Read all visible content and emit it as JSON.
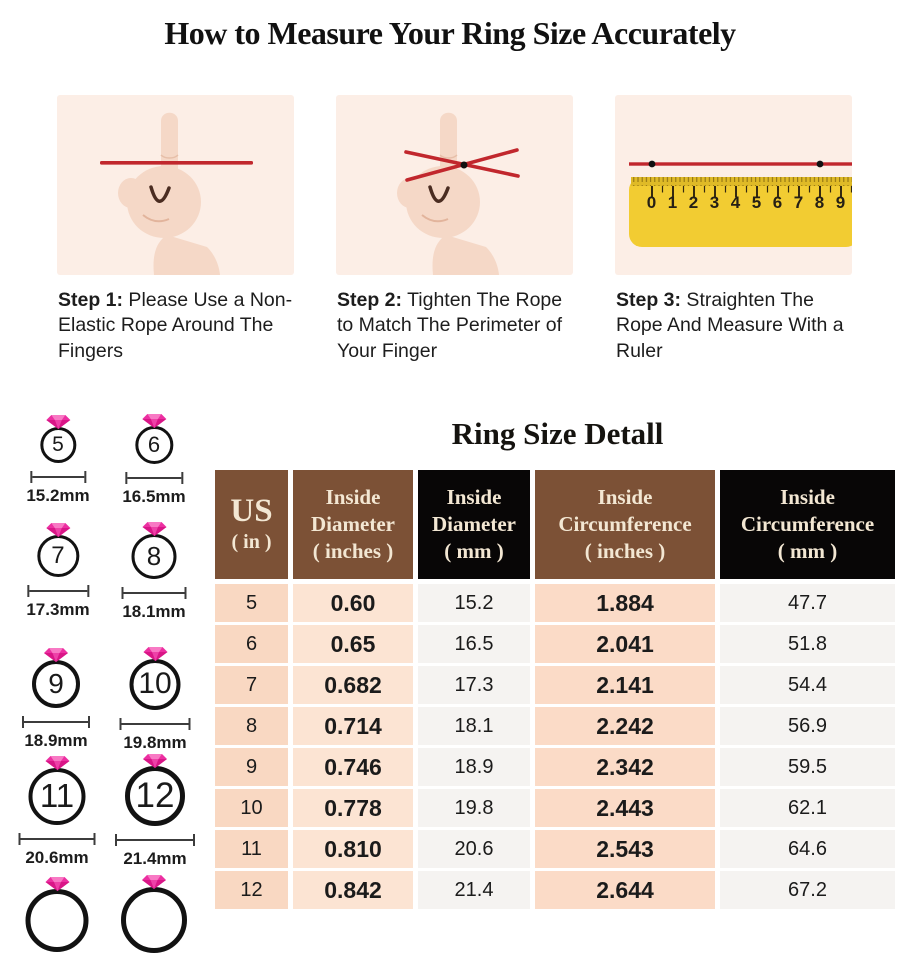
{
  "page_title": "How to Measure Your Ring Size Accurately",
  "steps": [
    {
      "label": "Step 1:",
      "text": " Please Use a Non-Elastic Rope Around The Fingers",
      "illustration": "hand-with-straight-rope"
    },
    {
      "label": "Step 2:",
      "text": " Tighten The Rope to Match The Perimeter of Your Finger",
      "illustration": "hand-with-crossed-rope"
    },
    {
      "label": "Step 3:",
      "text": " Straighten The Rope And Measure With a Ruler",
      "illustration": "rope-on-ruler"
    }
  ],
  "ruler_numbers": [
    "0",
    "1",
    "2",
    "3",
    "4",
    "5",
    "6",
    "7",
    "8",
    "9"
  ],
  "ring_size_chart": {
    "rings": [
      {
        "us_size": "5",
        "inside_diameter": "15.2mm"
      },
      {
        "us_size": "6",
        "inside_diameter": "16.5mm"
      },
      {
        "us_size": "7",
        "inside_diameter": "17.3mm"
      },
      {
        "us_size": "8",
        "inside_diameter": "18.1mm"
      },
      {
        "us_size": "9",
        "inside_diameter": "18.9mm"
      },
      {
        "us_size": "10",
        "inside_diameter": "19.8mm"
      },
      {
        "us_size": "11",
        "inside_diameter": "20.6mm"
      },
      {
        "us_size": "12",
        "inside_diameter": "21.4mm"
      }
    ]
  },
  "table": {
    "title": "Ring Size Detall",
    "headers": [
      {
        "line1": "US",
        "line2": "( in )"
      },
      {
        "line1": "Inside",
        "line2": "Diameter",
        "line3": "( inches )"
      },
      {
        "line1": "Inside",
        "line2": "Diameter",
        "line3": "( mm )"
      },
      {
        "line1": "Inside",
        "line2": "Circumference",
        "line3": "( inches )"
      },
      {
        "line1": "Inside",
        "line2": "Circumference",
        "line3": "( mm )"
      }
    ],
    "rows": [
      [
        "5",
        "0.60",
        "15.2",
        "1.884",
        "47.7"
      ],
      [
        "6",
        "0.65",
        "16.5",
        "2.041",
        "51.8"
      ],
      [
        "7",
        "0.682",
        "17.3",
        "2.141",
        "54.4"
      ],
      [
        "8",
        "0.714",
        "18.1",
        "2.242",
        "56.9"
      ],
      [
        "9",
        "0.746",
        "18.9",
        "2.342",
        "59.5"
      ],
      [
        "10",
        "0.778",
        "19.8",
        "2.443",
        "62.1"
      ],
      [
        "11",
        "0.810",
        "20.6",
        "2.543",
        "64.6"
      ],
      [
        "12",
        "0.842",
        "21.4",
        "2.644",
        "67.2"
      ]
    ]
  },
  "colors": {
    "rope_red": "#c1272d",
    "gem_pink": "#ee34a3",
    "header_brown": "#7c5136",
    "header_black": "#080606",
    "ruler_yellow": "#f2cc32",
    "panel_peach": "#fceee6",
    "row_peach": "#fbdcc8"
  }
}
